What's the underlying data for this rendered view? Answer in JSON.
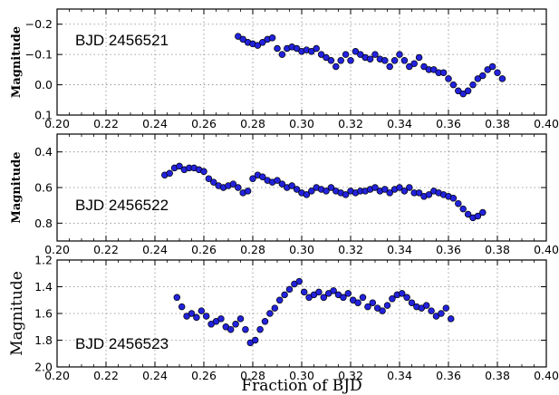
{
  "chart_data": [
    {
      "type": "scatter",
      "panel_label": "BJD 2456521",
      "ylabel": "Magnitude",
      "ylim_inverted": [
        0.1,
        -0.25
      ],
      "xlim": [
        0.2,
        0.4
      ],
      "x_ticks": [
        "0.20",
        "0.22",
        "0.24",
        "0.26",
        "0.28",
        "0.30",
        "0.32",
        "0.34",
        "0.36",
        "0.38",
        "0.40"
      ],
      "y_ticks": [
        {
          "v": -0.2,
          "label": "−0.2"
        },
        {
          "v": -0.1,
          "label": "−0.1"
        },
        {
          "v": 0.0,
          "label": "0.0"
        },
        {
          "v": 0.1,
          "label": "0.1"
        }
      ],
      "grid": true,
      "marker_color": "#2222dd",
      "x": [
        0.274,
        0.276,
        0.278,
        0.28,
        0.282,
        0.284,
        0.286,
        0.288,
        0.29,
        0.292,
        0.294,
        0.296,
        0.298,
        0.3,
        0.302,
        0.304,
        0.306,
        0.308,
        0.31,
        0.312,
        0.314,
        0.316,
        0.318,
        0.32,
        0.322,
        0.324,
        0.326,
        0.328,
        0.33,
        0.332,
        0.334,
        0.336,
        0.338,
        0.34,
        0.342,
        0.344,
        0.346,
        0.348,
        0.35,
        0.352,
        0.354,
        0.356,
        0.358,
        0.36,
        0.362,
        0.364,
        0.366,
        0.368,
        0.37,
        0.372,
        0.374,
        0.376,
        0.378,
        0.38,
        0.382
      ],
      "y": [
        -0.16,
        -0.15,
        -0.14,
        -0.135,
        -0.13,
        -0.14,
        -0.15,
        -0.155,
        -0.12,
        -0.1,
        -0.12,
        -0.125,
        -0.12,
        -0.11,
        -0.115,
        -0.11,
        -0.12,
        -0.1,
        -0.09,
        -0.08,
        -0.06,
        -0.08,
        -0.1,
        -0.08,
        -0.11,
        -0.1,
        -0.09,
        -0.085,
        -0.1,
        -0.085,
        -0.08,
        -0.06,
        -0.08,
        -0.1,
        -0.08,
        -0.06,
        -0.07,
        -0.09,
        -0.06,
        -0.05,
        -0.05,
        -0.04,
        -0.04,
        -0.02,
        0.0,
        0.02,
        0.03,
        0.02,
        0.0,
        -0.02,
        -0.03,
        -0.05,
        -0.06,
        -0.04,
        -0.02
      ]
    },
    {
      "type": "scatter",
      "panel_label": "BJD 2456522",
      "ylabel": "Magnitude",
      "ylim_inverted": [
        0.9,
        0.3
      ],
      "xlim": [
        0.2,
        0.4
      ],
      "x_ticks": [
        "0.20",
        "0.22",
        "0.24",
        "0.26",
        "0.28",
        "0.30",
        "0.32",
        "0.34",
        "0.36",
        "0.38",
        "0.40"
      ],
      "y_ticks": [
        {
          "v": 0.4,
          "label": "0.4"
        },
        {
          "v": 0.6,
          "label": "0.6"
        },
        {
          "v": 0.8,
          "label": "0.8"
        }
      ],
      "grid": true,
      "marker_color": "#2222dd",
      "x": [
        0.244,
        0.246,
        0.248,
        0.25,
        0.252,
        0.254,
        0.256,
        0.258,
        0.26,
        0.262,
        0.264,
        0.266,
        0.268,
        0.27,
        0.272,
        0.274,
        0.276,
        0.278,
        0.28,
        0.282,
        0.284,
        0.286,
        0.288,
        0.29,
        0.292,
        0.294,
        0.296,
        0.298,
        0.3,
        0.302,
        0.304,
        0.306,
        0.308,
        0.31,
        0.312,
        0.314,
        0.316,
        0.318,
        0.32,
        0.322,
        0.324,
        0.326,
        0.328,
        0.33,
        0.332,
        0.334,
        0.336,
        0.338,
        0.34,
        0.342,
        0.344,
        0.346,
        0.348,
        0.35,
        0.352,
        0.354,
        0.356,
        0.358,
        0.36,
        0.362,
        0.364,
        0.366,
        0.368,
        0.37,
        0.372,
        0.374
      ],
      "y": [
        0.53,
        0.52,
        0.49,
        0.48,
        0.5,
        0.49,
        0.49,
        0.5,
        0.51,
        0.55,
        0.57,
        0.59,
        0.6,
        0.59,
        0.58,
        0.6,
        0.63,
        0.62,
        0.55,
        0.53,
        0.54,
        0.56,
        0.57,
        0.56,
        0.58,
        0.6,
        0.59,
        0.61,
        0.63,
        0.64,
        0.62,
        0.6,
        0.61,
        0.62,
        0.6,
        0.62,
        0.63,
        0.64,
        0.62,
        0.63,
        0.62,
        0.62,
        0.61,
        0.6,
        0.62,
        0.61,
        0.63,
        0.61,
        0.6,
        0.62,
        0.6,
        0.63,
        0.63,
        0.65,
        0.64,
        0.62,
        0.63,
        0.64,
        0.65,
        0.66,
        0.69,
        0.72,
        0.75,
        0.77,
        0.76,
        0.74
      ]
    },
    {
      "type": "scatter",
      "panel_label": "BJD 2456523",
      "ylabel": "Magnitude",
      "xlabel": "Fraction of BJD",
      "ylim_inverted": [
        2.0,
        1.2
      ],
      "xlim": [
        0.2,
        0.4
      ],
      "x_ticks": [
        "0.20",
        "0.22",
        "0.24",
        "0.26",
        "0.28",
        "0.30",
        "0.32",
        "0.34",
        "0.36",
        "0.38",
        "0.40"
      ],
      "y_ticks": [
        {
          "v": 1.2,
          "label": "1.2"
        },
        {
          "v": 1.4,
          "label": "1.4"
        },
        {
          "v": 1.6,
          "label": "1.6"
        },
        {
          "v": 1.8,
          "label": "1.8"
        },
        {
          "v": 2.0,
          "label": "2.0"
        }
      ],
      "grid": true,
      "marker_color": "#2222dd",
      "x": [
        0.249,
        0.251,
        0.253,
        0.255,
        0.257,
        0.259,
        0.261,
        0.263,
        0.265,
        0.267,
        0.269,
        0.271,
        0.273,
        0.275,
        0.277,
        0.279,
        0.281,
        0.283,
        0.285,
        0.287,
        0.289,
        0.291,
        0.293,
        0.295,
        0.297,
        0.299,
        0.301,
        0.303,
        0.305,
        0.307,
        0.309,
        0.311,
        0.313,
        0.315,
        0.317,
        0.319,
        0.321,
        0.323,
        0.325,
        0.327,
        0.329,
        0.331,
        0.333,
        0.335,
        0.337,
        0.339,
        0.341,
        0.343,
        0.345,
        0.347,
        0.349,
        0.351,
        0.353,
        0.355,
        0.357,
        0.359,
        0.361
      ],
      "y": [
        1.48,
        1.55,
        1.62,
        1.6,
        1.63,
        1.58,
        1.62,
        1.68,
        1.66,
        1.64,
        1.7,
        1.72,
        1.68,
        1.64,
        1.72,
        1.82,
        1.8,
        1.72,
        1.66,
        1.6,
        1.56,
        1.5,
        1.46,
        1.42,
        1.38,
        1.36,
        1.44,
        1.48,
        1.46,
        1.44,
        1.48,
        1.45,
        1.43,
        1.46,
        1.48,
        1.45,
        1.5,
        1.52,
        1.48,
        1.55,
        1.52,
        1.56,
        1.58,
        1.54,
        1.49,
        1.46,
        1.45,
        1.48,
        1.52,
        1.55,
        1.56,
        1.54,
        1.58,
        1.62,
        1.6,
        1.56,
        1.64
      ]
    }
  ]
}
